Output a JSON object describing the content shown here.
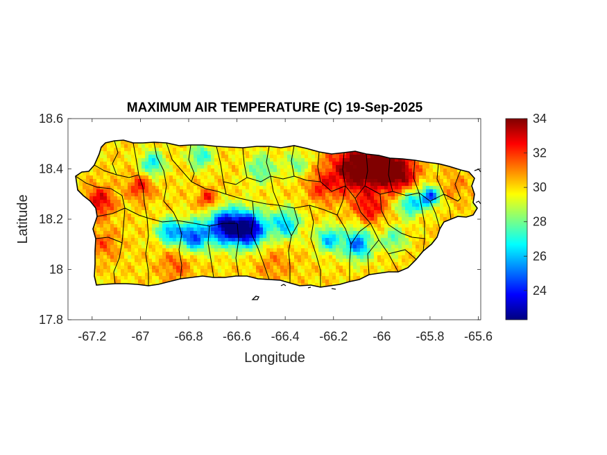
{
  "chart_data": {
    "type": "heatmap",
    "title": "MAXIMUM AIR TEMPERATURE (C) 19-Sep-2025",
    "xlabel": "Longitude",
    "ylabel": "Latitude",
    "xlim": [
      -67.3,
      -65.59
    ],
    "ylim": [
      17.8,
      18.6
    ],
    "xticks": [
      -67.2,
      -67,
      -66.8,
      -66.6,
      -66.4,
      -66.2,
      -66,
      -65.8,
      -65.6
    ],
    "yticks": [
      17.8,
      18,
      18.2,
      18.4,
      18.6
    ],
    "xtick_labels": [
      "-67.2",
      "-67",
      "-66.8",
      "-66.6",
      "-66.4",
      "-66.2",
      "-66",
      "-65.8",
      "-65.6"
    ],
    "ytick_labels": [
      "17.8",
      "18",
      "18.2",
      "18.4",
      "18.6"
    ],
    "colorbar": {
      "colormap": "jet",
      "range": [
        22.3,
        34
      ],
      "ticks": [
        24,
        26,
        28,
        30,
        32,
        34
      ],
      "tick_labels": [
        "24",
        "26",
        "28",
        "30",
        "32",
        "34"
      ]
    },
    "field_baseline": 30,
    "hotspots": [
      {
        "lon": -66.12,
        "lat": 18.4,
        "value": 34,
        "radius": 0.1
      },
      {
        "lon": -66.0,
        "lat": 18.41,
        "value": 34,
        "radius": 0.09
      },
      {
        "lon": -65.92,
        "lat": 18.38,
        "value": 33,
        "radius": 0.07
      },
      {
        "lon": -66.05,
        "lat": 18.24,
        "value": 32.5,
        "radius": 0.06
      },
      {
        "lon": -66.25,
        "lat": 18.33,
        "value": 32,
        "radius": 0.06
      },
      {
        "lon": -67.17,
        "lat": 18.27,
        "value": 33,
        "radius": 0.06
      },
      {
        "lon": -67.0,
        "lat": 18.33,
        "value": 32.5,
        "radius": 0.05
      },
      {
        "lon": -66.72,
        "lat": 18.28,
        "value": 32.5,
        "radius": 0.04
      },
      {
        "lon": -67.15,
        "lat": 18.1,
        "value": 31.5,
        "radius": 0.06
      },
      {
        "lon": -66.85,
        "lat": 18.02,
        "value": 31.5,
        "radius": 0.07
      },
      {
        "lon": -66.45,
        "lat": 18.02,
        "value": 31,
        "radius": 0.08
      },
      {
        "lon": -65.7,
        "lat": 18.33,
        "value": 31,
        "radius": 0.06
      },
      {
        "lon": -66.65,
        "lat": 18.17,
        "value": 23,
        "radius": 0.07
      },
      {
        "lon": -66.55,
        "lat": 18.16,
        "value": 22.5,
        "radius": 0.07
      },
      {
        "lon": -66.78,
        "lat": 18.13,
        "value": 24.5,
        "radius": 0.06
      },
      {
        "lon": -66.88,
        "lat": 18.15,
        "value": 25.5,
        "radius": 0.05
      },
      {
        "lon": -66.4,
        "lat": 18.18,
        "value": 26,
        "radius": 0.06
      },
      {
        "lon": -66.1,
        "lat": 18.1,
        "value": 25,
        "radius": 0.06
      },
      {
        "lon": -66.22,
        "lat": 18.12,
        "value": 26,
        "radius": 0.05
      },
      {
        "lon": -65.8,
        "lat": 18.29,
        "value": 24.5,
        "radius": 0.04
      },
      {
        "lon": -65.88,
        "lat": 18.26,
        "value": 26,
        "radius": 0.05
      },
      {
        "lon": -66.95,
        "lat": 18.42,
        "value": 26.5,
        "radius": 0.05
      },
      {
        "lon": -66.75,
        "lat": 18.45,
        "value": 27,
        "radius": 0.05
      },
      {
        "lon": -66.5,
        "lat": 18.4,
        "value": 27.5,
        "radius": 0.06
      },
      {
        "lon": -66.35,
        "lat": 18.42,
        "value": 28,
        "radius": 0.05
      },
      {
        "lon": -65.95,
        "lat": 18.12,
        "value": 27.5,
        "radius": 0.05
      }
    ]
  }
}
